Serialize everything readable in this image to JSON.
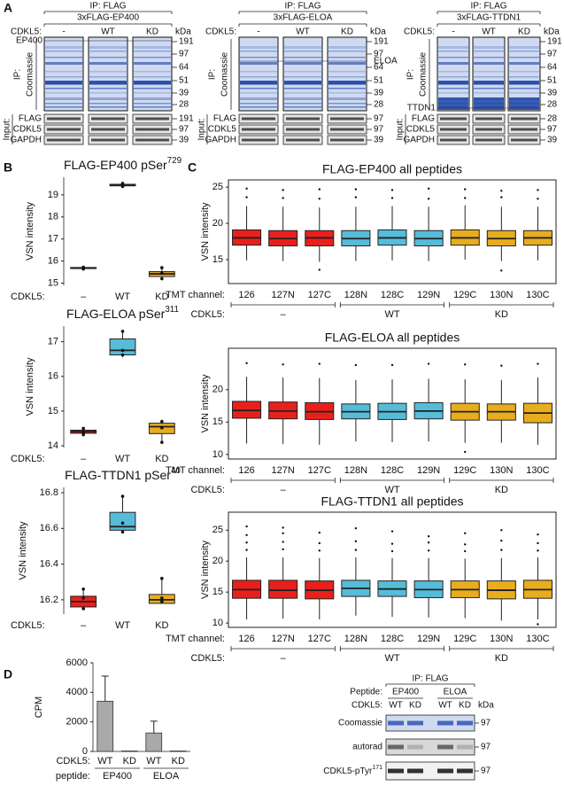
{
  "panel_labels": [
    "A",
    "B",
    "C",
    "D"
  ],
  "blots": [
    {
      "ip": "IP: FLAG",
      "construct": "3xFLAG-EP400",
      "cdkl5_label": "CDKL5:",
      "lanes": [
        "-",
        "WT",
        "KD"
      ],
      "kda": "kDa",
      "markers": [
        "191",
        "97",
        "64",
        "51",
        "39",
        "28"
      ],
      "band_label": "EP400",
      "ip_label": "IP:",
      "stain": "Coomassie",
      "input_label": "Input:",
      "input_rows": [
        {
          "label": "FLAG",
          "kda": "191"
        },
        {
          "label": "CDKL5",
          "kda": "97"
        },
        {
          "label": "GAPDH",
          "kda": "39"
        }
      ]
    },
    {
      "ip": "IP: FLAG",
      "construct": "3xFLAG-ELOA",
      "cdkl5_label": "CDKL5:",
      "lanes": [
        "-",
        "WT",
        "KD"
      ],
      "kda": "kDa",
      "markers": [
        "191",
        "97",
        "64",
        "51",
        "39",
        "28"
      ],
      "band_label": "ELOA",
      "ip_label": "IP:",
      "stain": "Coomassie",
      "input_label": "Input:",
      "input_rows": [
        {
          "label": "FLAG",
          "kda": "97"
        },
        {
          "label": "CDKL5",
          "kda": "97"
        },
        {
          "label": "GAPDH",
          "kda": "39"
        }
      ]
    },
    {
      "ip": "IP: FLAG",
      "construct": "3xFLAG-TTDN1",
      "cdkl5_label": "CDKL5:",
      "lanes": [
        "-",
        "WT",
        "KD"
      ],
      "kda": "kDa",
      "markers": [
        "191",
        "97",
        "64",
        "51",
        "39",
        "28"
      ],
      "band_label": "TTDN1",
      "ip_label": "IP:",
      "stain": "Coomassie",
      "input_label": "Input:",
      "input_rows": [
        {
          "label": "FLAG",
          "kda": "28"
        },
        {
          "label": "CDKL5",
          "kda": "97"
        },
        {
          "label": "GAPDH",
          "kda": "39"
        }
      ]
    }
  ],
  "autorad_blot": {
    "ip": "IP: FLAG",
    "peptide_label": "Peptide:",
    "peptides": [
      "EP400",
      "ELOA"
    ],
    "cdkl5_label": "CDKL5:",
    "lanes": [
      "WT",
      "KD",
      "WT",
      "KD"
    ],
    "kda": "kDa",
    "rows": [
      {
        "label": "Coomassie",
        "kda": "97"
      },
      {
        "label": "autorad",
        "kda": "97"
      },
      {
        "label": "CDKL5-pTyr",
        "label_sup": "171",
        "kda": "97"
      }
    ]
  },
  "chart_data": [
    {
      "type": "box",
      "title": "FLAG-EP400 pSer",
      "title_sup": "729",
      "ylabel": "VSN intensity",
      "xlabel": "CDKL5:",
      "categories": [
        "–",
        "WT",
        "KD"
      ],
      "colors": [
        "#e8201c",
        "#56bcd9",
        "#e8ad1e"
      ],
      "ylim": [
        14.9,
        19.8
      ],
      "yticks": [
        15,
        16,
        17,
        18,
        19
      ],
      "boxes": [
        {
          "whislo": 15.64,
          "q1": 15.66,
          "med": 15.68,
          "q3": 15.71,
          "whishi": 15.72,
          "points": [
            15.64,
            15.69,
            15.72
          ]
        },
        {
          "whislo": 19.38,
          "q1": 19.41,
          "med": 19.45,
          "q3": 19.48,
          "whishi": 19.52,
          "points": [
            19.38,
            19.44,
            19.52
          ]
        },
        {
          "whislo": 15.2,
          "q1": 15.3,
          "med": 15.42,
          "q3": 15.52,
          "whishi": 15.7,
          "points": [
            15.2,
            15.45,
            15.7
          ]
        }
      ]
    },
    {
      "type": "box",
      "title": "FLAG-ELOA pSer",
      "title_sup": "311",
      "ylabel": "VSN intensity",
      "xlabel": "CDKL5:",
      "categories": [
        "–",
        "WT",
        "KD"
      ],
      "colors": [
        "#e8201c",
        "#56bcd9",
        "#e8ad1e"
      ],
      "ylim": [
        13.95,
        17.45
      ],
      "yticks": [
        14,
        15,
        16,
        17
      ],
      "boxes": [
        {
          "whislo": 14.32,
          "q1": 14.36,
          "med": 14.41,
          "q3": 14.45,
          "whishi": 14.5,
          "points": [
            14.32,
            14.4,
            14.5
          ]
        },
        {
          "whislo": 16.55,
          "q1": 16.62,
          "med": 16.75,
          "q3": 17.08,
          "whishi": 17.3,
          "points": [
            16.62,
            16.75,
            17.3
          ]
        },
        {
          "whislo": 14.1,
          "q1": 14.35,
          "med": 14.55,
          "q3": 14.65,
          "whishi": 14.75,
          "points": [
            14.1,
            14.52,
            14.7
          ]
        }
      ]
    },
    {
      "type": "box",
      "title": "FLAG-TTDN1 pSer",
      "title_sup": "40",
      "ylabel": "VSN intensity",
      "xlabel": "CDKL5:",
      "categories": [
        "–",
        "WT",
        "KD"
      ],
      "colors": [
        "#e8201c",
        "#56bcd9",
        "#e8ad1e"
      ],
      "ylim": [
        16.12,
        16.83
      ],
      "yticks": [
        16.2,
        16.4,
        16.6,
        16.8
      ],
      "boxes": [
        {
          "whislo": 16.15,
          "q1": 16.16,
          "med": 16.19,
          "q3": 16.22,
          "whishi": 16.26,
          "points": [
            16.15,
            16.21,
            16.26
          ]
        },
        {
          "whislo": 16.58,
          "q1": 16.59,
          "med": 16.61,
          "q3": 16.69,
          "whishi": 16.78,
          "points": [
            16.58,
            16.63,
            16.78
          ]
        },
        {
          "whislo": 16.18,
          "q1": 16.18,
          "med": 16.2,
          "q3": 16.23,
          "whishi": 16.32,
          "points": [
            16.19,
            16.21,
            16.32
          ]
        }
      ]
    },
    {
      "type": "box",
      "title": "FLAG-EP400 all peptides",
      "ylabel": "VSN intensity",
      "channel_label": "TMT channel:",
      "categories": [
        "126",
        "127N",
        "127C",
        "128N",
        "128C",
        "129N",
        "129C",
        "130N",
        "130C"
      ],
      "group_label": "CDKL5:",
      "groups": [
        "–",
        "WT",
        "KD"
      ],
      "colors": [
        "#e8201c",
        "#e8201c",
        "#e8201c",
        "#56bcd9",
        "#56bcd9",
        "#56bcd9",
        "#e8ad1e",
        "#e8ad1e",
        "#e8ad1e"
      ],
      "ylim": [
        11.7,
        26
      ],
      "yticks": [
        15,
        20,
        25
      ],
      "boxes": [
        {
          "whislo": 14.9,
          "q1": 17.0,
          "med": 18.0,
          "q3": 19.1,
          "whishi": 22.4,
          "fliers": [
            23.6,
            24.8
          ]
        },
        {
          "whislo": 14.8,
          "q1": 16.9,
          "med": 17.9,
          "q3": 19.0,
          "whishi": 22.3,
          "fliers": [
            23.5,
            24.6
          ]
        },
        {
          "whislo": 14.7,
          "q1": 16.9,
          "med": 18.0,
          "q3": 19.0,
          "whishi": 22.2,
          "fliers": [
            23.4,
            24.7,
            13.6
          ]
        },
        {
          "whislo": 14.8,
          "q1": 16.9,
          "med": 17.9,
          "q3": 19.0,
          "whishi": 22.3,
          "fliers": [
            23.6,
            24.7
          ]
        },
        {
          "whislo": 14.9,
          "q1": 17.0,
          "med": 18.0,
          "q3": 19.1,
          "whishi": 22.4,
          "fliers": [
            23.5,
            24.6
          ]
        },
        {
          "whislo": 14.8,
          "q1": 16.9,
          "med": 17.9,
          "q3": 19.0,
          "whishi": 22.3,
          "fliers": [
            23.4,
            24.8
          ]
        },
        {
          "whislo": 15.0,
          "q1": 17.0,
          "med": 18.0,
          "q3": 19.1,
          "whishi": 22.5,
          "fliers": [
            23.5,
            24.7
          ]
        },
        {
          "whislo": 14.8,
          "q1": 16.9,
          "med": 17.9,
          "q3": 19.0,
          "whishi": 22.3,
          "fliers": [
            23.6,
            24.5,
            13.5
          ]
        },
        {
          "whislo": 14.9,
          "q1": 17.0,
          "med": 18.0,
          "q3": 19.0,
          "whishi": 22.3,
          "fliers": [
            23.4,
            24.6
          ]
        }
      ]
    },
    {
      "type": "box",
      "title": "FLAG-ELOA all peptides",
      "ylabel": "VSN intensity",
      "channel_label": "TMT channel:",
      "categories": [
        "126",
        "127N",
        "127C",
        "128N",
        "128C",
        "129N",
        "129C",
        "130N",
        "130C"
      ],
      "group_label": "CDKL5:",
      "groups": [
        "–",
        "WT",
        "KD"
      ],
      "colors": [
        "#e8201c",
        "#e8201c",
        "#e8201c",
        "#56bcd9",
        "#56bcd9",
        "#56bcd9",
        "#e8ad1e",
        "#e8ad1e",
        "#e8ad1e"
      ],
      "ylim": [
        9.3,
        26.4
      ],
      "yticks": [
        10,
        15,
        20
      ],
      "boxes": [
        {
          "whislo": 11.7,
          "q1": 15.6,
          "med": 16.8,
          "q3": 18.2,
          "whishi": 22.0,
          "fliers": [
            24.1
          ]
        },
        {
          "whislo": 11.6,
          "q1": 15.5,
          "med": 16.7,
          "q3": 18.1,
          "whishi": 21.9,
          "fliers": [
            23.9
          ]
        },
        {
          "whislo": 11.5,
          "q1": 15.4,
          "med": 16.6,
          "q3": 18.0,
          "whishi": 21.8,
          "fliers": [
            24.0
          ]
        },
        {
          "whislo": 12.0,
          "q1": 15.5,
          "med": 16.6,
          "q3": 17.8,
          "whishi": 21.5,
          "fliers": [
            23.8
          ]
        },
        {
          "whislo": 11.9,
          "q1": 15.4,
          "med": 16.6,
          "q3": 17.9,
          "whishi": 21.6,
          "fliers": [
            23.8
          ]
        },
        {
          "whislo": 12.0,
          "q1": 15.5,
          "med": 16.7,
          "q3": 18.0,
          "whishi": 21.7,
          "fliers": [
            24.0
          ]
        },
        {
          "whislo": 11.8,
          "q1": 15.3,
          "med": 16.6,
          "q3": 17.9,
          "whishi": 21.6,
          "fliers": [
            23.9,
            10.4
          ]
        },
        {
          "whislo": 11.8,
          "q1": 15.3,
          "med": 16.6,
          "q3": 17.8,
          "whishi": 21.5,
          "fliers": [
            23.7
          ]
        },
        {
          "whislo": 11.5,
          "q1": 14.9,
          "med": 16.4,
          "q3": 17.9,
          "whishi": 21.9,
          "fliers": [
            24.0
          ]
        }
      ]
    },
    {
      "type": "box",
      "title": "FLAG-TTDN1 all peptides",
      "ylabel": "VSN intensity",
      "channel_label": "TMT channel:",
      "categories": [
        "126",
        "127N",
        "127C",
        "128N",
        "128C",
        "129N",
        "129C",
        "130N",
        "130C"
      ],
      "group_label": "CDKL5:",
      "groups": [
        "–",
        "WT",
        "KD"
      ],
      "colors": [
        "#e8201c",
        "#e8201c",
        "#e8201c",
        "#56bcd9",
        "#56bcd9",
        "#56bcd9",
        "#e8ad1e",
        "#e8ad1e",
        "#e8ad1e"
      ],
      "ylim": [
        9.3,
        27.9
      ],
      "yticks": [
        10,
        15,
        20,
        25
      ],
      "boxes": [
        {
          "whislo": 10.6,
          "q1": 14.0,
          "med": 15.4,
          "q3": 16.9,
          "whishi": 20.6,
          "fliers": [
            21.8,
            23.0,
            24.2,
            25.6
          ]
        },
        {
          "whislo": 10.7,
          "q1": 14.0,
          "med": 15.3,
          "q3": 16.9,
          "whishi": 20.6,
          "fliers": [
            21.9,
            23.1,
            24.5,
            25.4
          ]
        },
        {
          "whislo": 10.6,
          "q1": 13.9,
          "med": 15.3,
          "q3": 16.8,
          "whishi": 20.5,
          "fliers": [
            21.7,
            22.9,
            24.6
          ]
        },
        {
          "whislo": 11.2,
          "q1": 14.3,
          "med": 15.6,
          "q3": 16.9,
          "whishi": 20.6,
          "fliers": [
            21.8,
            23.2,
            25.3
          ]
        },
        {
          "whislo": 11.0,
          "q1": 14.3,
          "med": 15.5,
          "q3": 16.8,
          "whishi": 20.5,
          "fliers": [
            21.6,
            22.8,
            24.8
          ]
        },
        {
          "whislo": 10.9,
          "q1": 14.1,
          "med": 15.4,
          "q3": 16.8,
          "whishi": 20.5,
          "fliers": [
            21.7,
            23.0,
            24.0
          ]
        },
        {
          "whislo": 10.8,
          "q1": 14.1,
          "med": 15.4,
          "q3": 16.8,
          "whishi": 20.4,
          "fliers": [
            21.6,
            22.7,
            24.5
          ]
        },
        {
          "whislo": 10.4,
          "q1": 13.9,
          "med": 15.3,
          "q3": 16.8,
          "whishi": 20.5,
          "fliers": [
            21.8,
            23.3,
            25.0
          ]
        },
        {
          "whislo": 10.6,
          "q1": 14.0,
          "med": 15.4,
          "q3": 16.9,
          "whishi": 20.6,
          "fliers": [
            21.7,
            22.9,
            24.3,
            9.8
          ]
        }
      ]
    },
    {
      "type": "bar",
      "ylabel": "CPM",
      "categories": [
        "WT",
        "KD",
        "WT",
        "KD"
      ],
      "category_label": "CDKL5:",
      "groups": [
        "EP400",
        "ELOA"
      ],
      "group_label": "peptide:",
      "color": "#a9a9a9",
      "values": [
        3400,
        30,
        1250,
        30
      ],
      "errors": [
        1700,
        0,
        800,
        0
      ],
      "ylim": [
        0,
        6000
      ],
      "yticks": [
        0,
        2000,
        4000,
        6000
      ]
    }
  ]
}
